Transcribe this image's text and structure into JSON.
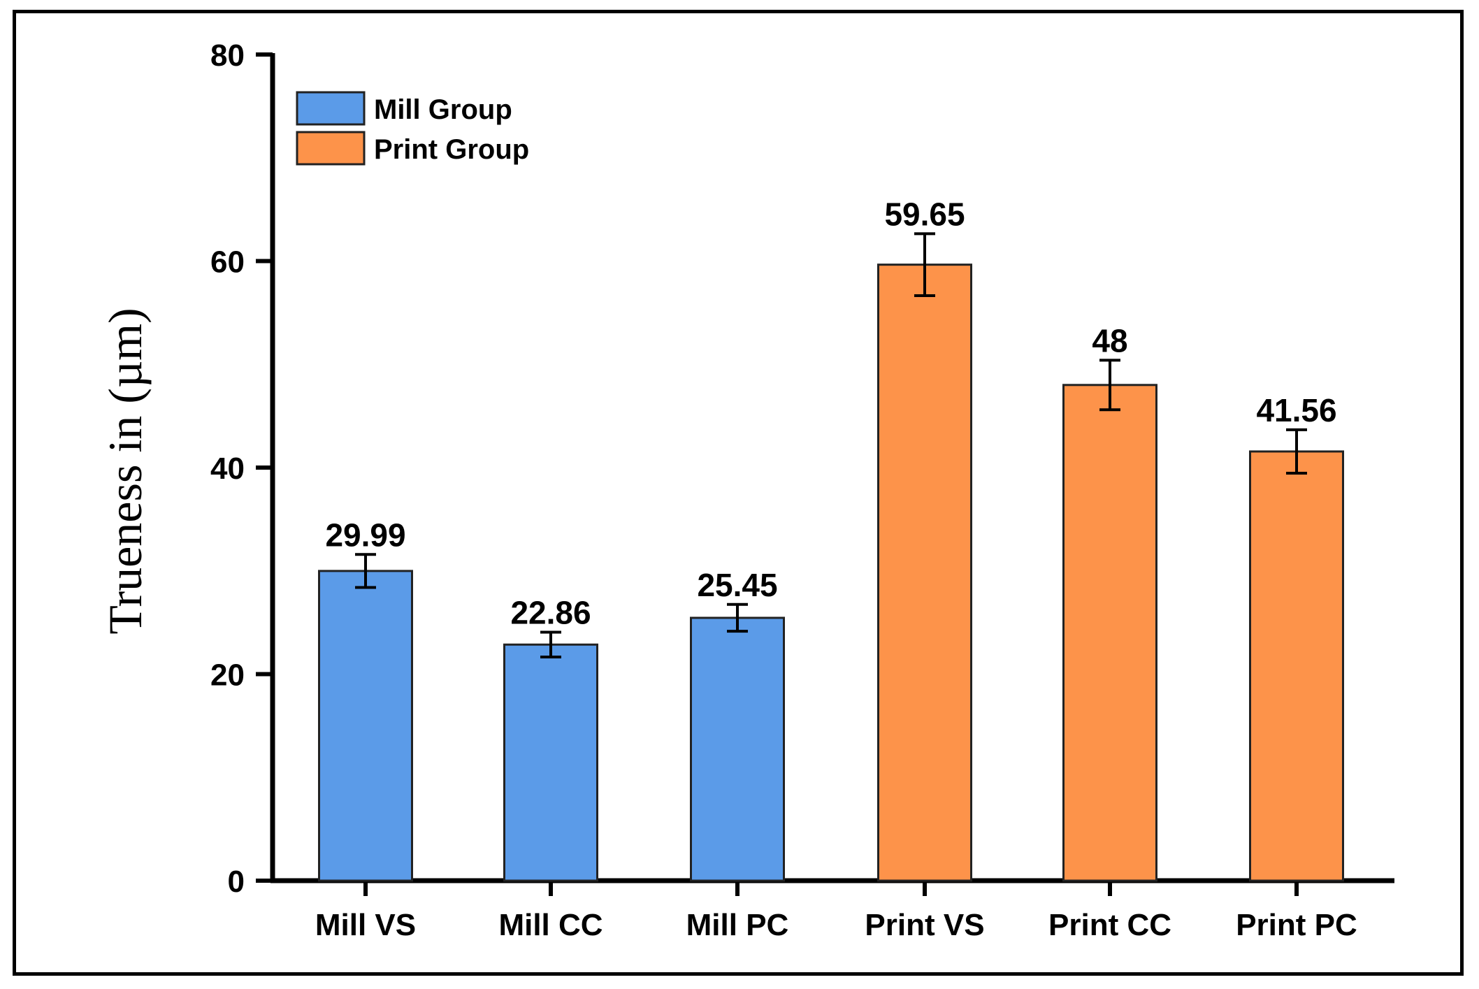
{
  "chart_data": {
    "type": "bar",
    "title": "",
    "xlabel": "",
    "ylabel": "Trueness in (µm)",
    "ylim": [
      0,
      80
    ],
    "yticks": [
      0,
      20,
      40,
      60,
      80
    ],
    "grid": false,
    "legend_position": "top-left",
    "categories": [
      "Mill VS",
      "Mill CC",
      "Mill PC",
      "Print VS",
      "Print CC",
      "Print PC"
    ],
    "values": [
      29.99,
      22.86,
      25.45,
      59.65,
      48,
      41.56
    ],
    "value_labels": [
      "29.99",
      "22.86",
      "25.45",
      "59.65",
      "48",
      "41.56"
    ],
    "errors": [
      1.6,
      1.2,
      1.3,
      3.0,
      2.4,
      2.1
    ],
    "groups": [
      "Mill Group",
      "Mill Group",
      "Mill Group",
      "Print Group",
      "Print Group",
      "Print Group"
    ],
    "legend": [
      {
        "name": "Mill Group",
        "color": "#5b9be8"
      },
      {
        "name": "Print Group",
        "color": "#fd934a"
      }
    ]
  }
}
